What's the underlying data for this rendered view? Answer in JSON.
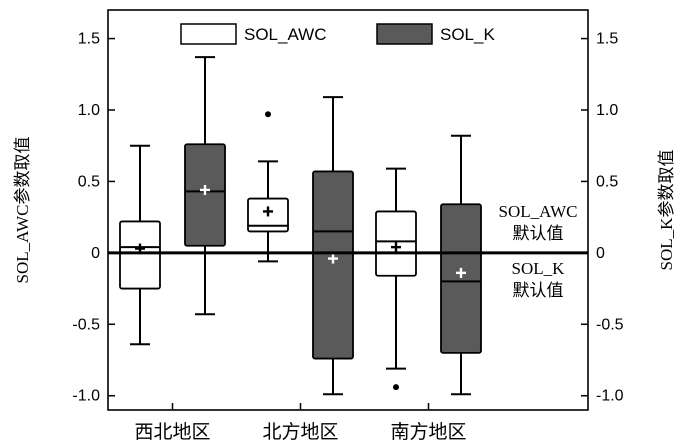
{
  "chart_data": {
    "type": "box",
    "categories": [
      "西北地区",
      "北方地区",
      "南方地区"
    ],
    "ylabel_left": "SOL_AWC参数取值",
    "ylabel_right": "SOL_K参数取值",
    "ylim": [
      -1.1,
      1.7
    ],
    "yticks": [
      -1.0,
      -0.5,
      0,
      0.5,
      1.0,
      1.5
    ],
    "ytick_labels": [
      "-1.0",
      "-0.5",
      "0",
      "0.5",
      "1.0",
      "1.5"
    ],
    "legend_position": "top",
    "series": [
      {
        "name": "SOL_AWC",
        "color": "#ffffff",
        "boxes": [
          {
            "whislo": -0.64,
            "q1": -0.25,
            "median": 0.04,
            "mean": 0.03,
            "q3": 0.22,
            "whishi": 0.75,
            "outliers": []
          },
          {
            "whislo": -0.06,
            "q1": 0.15,
            "median": 0.19,
            "mean": 0.29,
            "q3": 0.38,
            "whishi": 0.64,
            "outliers": [
              0.97
            ]
          },
          {
            "whislo": -0.81,
            "q1": -0.16,
            "median": 0.08,
            "mean": 0.04,
            "q3": 0.29,
            "whishi": 0.59,
            "outliers": [
              -0.94
            ]
          }
        ]
      },
      {
        "name": "SOL_K",
        "color": "#5a5a5a",
        "boxes": [
          {
            "whislo": -0.43,
            "q1": 0.05,
            "median": 0.43,
            "mean": 0.44,
            "q3": 0.76,
            "whishi": 1.37,
            "outliers": []
          },
          {
            "whislo": -0.99,
            "q1": -0.74,
            "median": 0.15,
            "mean": -0.04,
            "q3": 0.57,
            "whishi": 1.09,
            "outliers": []
          },
          {
            "whislo": -0.99,
            "q1": -0.7,
            "median": -0.2,
            "mean": -0.14,
            "q3": 0.34,
            "whishi": 0.82,
            "outliers": []
          }
        ]
      }
    ],
    "reference_line": {
      "y": 0
    },
    "annotations": {
      "awc_default_line1": "SOL_AWC",
      "awc_default_line2": "默认值",
      "k_default_line1": "SOL_K",
      "k_default_line2": "默认值"
    }
  }
}
